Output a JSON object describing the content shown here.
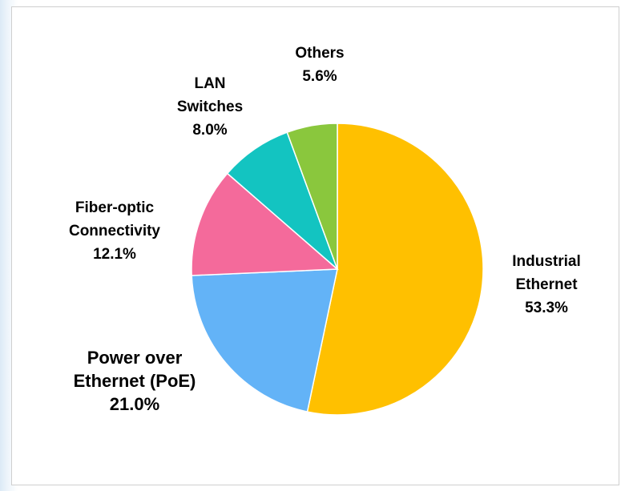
{
  "chart_data": {
    "type": "pie",
    "title": "",
    "slices": [
      {
        "lines": [
          "Industrial",
          "Ethernet"
        ],
        "pct_label": "53.3%",
        "value": 53.3,
        "color": "#ffc000"
      },
      {
        "lines": [
          "Power over",
          "Ethernet (PoE)"
        ],
        "pct_label": "21.0%",
        "value": 21.0,
        "color": "#63b3f7"
      },
      {
        "lines": [
          "Fiber-optic",
          "Connectivity"
        ],
        "pct_label": "12.1%",
        "value": 12.1,
        "color": "#f46a9b"
      },
      {
        "lines": [
          "LAN",
          "Switches"
        ],
        "pct_label": "8.0%",
        "value": 8.0,
        "color": "#13c4c1"
      },
      {
        "lines": [
          "Others"
        ],
        "pct_label": "5.6%",
        "value": 5.6,
        "color": "#8ac73d"
      }
    ],
    "start_angle": "12 o'clock",
    "direction": "clockwise",
    "legend": "none"
  }
}
